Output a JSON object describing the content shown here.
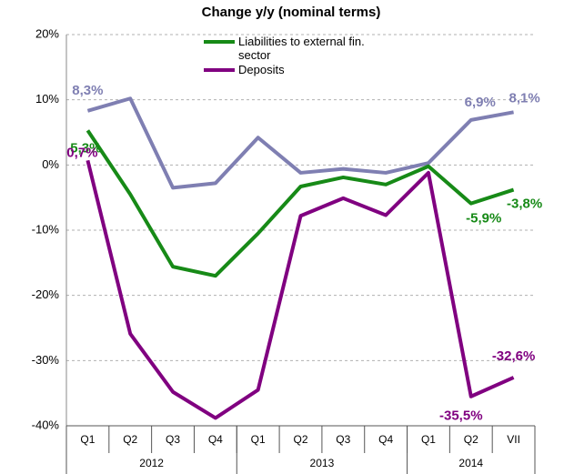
{
  "chart_data": {
    "type": "line",
    "title": "Change y/y (nominal terms)",
    "categories": [
      "Q1",
      "Q2",
      "Q3",
      "Q4",
      "Q1",
      "Q2",
      "Q3",
      "Q4",
      "Q1",
      "Q2",
      "VII"
    ],
    "groups": [
      {
        "label": "2012",
        "size": 4
      },
      {
        "label": "2013",
        "size": 4
      },
      {
        "label": "2014",
        "size": 3
      }
    ],
    "series": [
      {
        "color": "#7f7fb2",
        "values": [
          8.3,
          10.2,
          -3.5,
          -2.8,
          4.2,
          -1.2,
          -0.6,
          -1.2,
          0.3,
          6.9,
          8.1
        ],
        "value_labels": [
          "8,3%",
          null,
          null,
          null,
          null,
          null,
          null,
          null,
          null,
          "6,9%",
          "8,1%"
        ]
      },
      {
        "name": "Liabilities to external fin. sector",
        "color": "#178a17",
        "values": [
          5.3,
          -4.5,
          -15.6,
          -17.0,
          -10.5,
          -3.3,
          -1.9,
          -3.0,
          -0.2,
          -5.9,
          -3.8
        ],
        "value_labels": [
          "5,3%",
          null,
          null,
          null,
          null,
          null,
          null,
          null,
          null,
          "-5,9%",
          "-3,8%"
        ]
      },
      {
        "name": "Deposits",
        "color": "#800080",
        "values": [
          0.7,
          -25.9,
          -34.8,
          -38.8,
          -34.5,
          -7.8,
          -5.1,
          -7.7,
          -1.2,
          -35.5,
          -32.6
        ],
        "value_labels": [
          "0,7%",
          null,
          null,
          null,
          null,
          null,
          null,
          null,
          null,
          "-35,5%",
          "-32,6%"
        ]
      }
    ],
    "ylim": [
      -40,
      20
    ],
    "yticks": [
      {
        "value": -40,
        "label": "-40%"
      },
      {
        "value": -30,
        "label": "-30%"
      },
      {
        "value": -20,
        "label": "-20%"
      },
      {
        "value": -10,
        "label": "-10%"
      },
      {
        "value": 0,
        "label": "0%"
      },
      {
        "value": 10,
        "label": "10%"
      },
      {
        "value": 20,
        "label": "20%"
      }
    ],
    "grid": true
  }
}
